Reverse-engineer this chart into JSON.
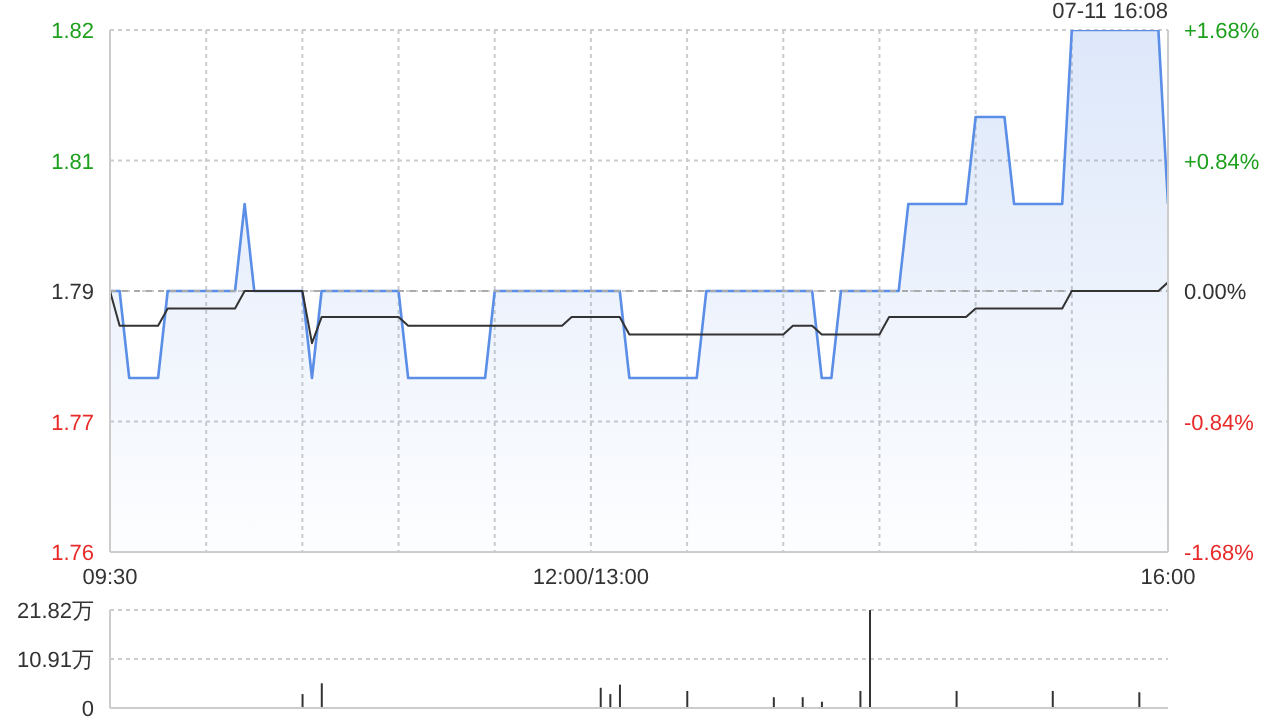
{
  "chart_data": [
    {
      "type": "area",
      "annotations": [
        "07-11 16:08"
      ],
      "categories": [
        "09:30",
        null,
        null,
        null,
        null,
        null,
        null,
        null,
        null,
        null,
        null,
        null,
        null,
        null,
        null,
        null,
        null,
        null,
        null,
        null,
        null,
        null,
        null,
        null,
        null,
        null,
        null,
        null,
        null,
        null,
        null,
        null,
        null,
        null,
        null,
        null,
        null,
        null,
        null,
        null,
        null,
        null,
        null,
        null,
        null,
        null,
        null,
        null,
        null,
        null,
        "12:00/13:00",
        null,
        null,
        null,
        null,
        null,
        null,
        null,
        null,
        null,
        null,
        null,
        null,
        null,
        null,
        null,
        null,
        null,
        null,
        null,
        null,
        null,
        null,
        null,
        null,
        null,
        null,
        null,
        null,
        null,
        null,
        null,
        null,
        null,
        null,
        null,
        null,
        null,
        null,
        null,
        null,
        null,
        null,
        null,
        null,
        null,
        null,
        null,
        null,
        null,
        null,
        null,
        null,
        null,
        null,
        null,
        null,
        null,
        null,
        null,
        "16:00"
      ],
      "ylim": [
        1.76,
        1.82
      ],
      "yticks": [
        1.76,
        {
          "value": 1.775,
          "label": "1.77"
        },
        1.79,
        {
          "value": 1.805,
          "label": "1.81"
        },
        1.82
      ],
      "y2lim": [
        -1.68,
        1.68
      ],
      "y2ticks": [
        {
          "value": -1.68,
          "label": "-1.68%"
        },
        {
          "value": -0.84,
          "label": "-0.84%"
        },
        {
          "value": 0,
          "label": "0.00%"
        },
        {
          "value": 0.84,
          "label": "+0.84%"
        },
        {
          "value": 1.68,
          "label": "+1.68%"
        }
      ],
      "grid": true,
      "legend": false,
      "marker": "none",
      "ref_lines": [
        {
          "axis": "y",
          "value": 1.79,
          "line_style": "dashed",
          "color": "#aaaaaa"
        }
      ],
      "series": [
        {
          "color": "#5b8ee6",
          "values": [
            1.79,
            1.79,
            1.78,
            1.78,
            1.78,
            1.78,
            1.79,
            1.79,
            1.79,
            1.79,
            1.79,
            1.79,
            1.79,
            1.79,
            1.8,
            1.79,
            1.79,
            1.79,
            1.79,
            1.79,
            1.79,
            1.78,
            1.79,
            1.79,
            1.79,
            1.79,
            1.79,
            1.79,
            1.79,
            1.79,
            1.79,
            1.78,
            1.78,
            1.78,
            1.78,
            1.78,
            1.78,
            1.78,
            1.78,
            1.78,
            1.79,
            1.79,
            1.79,
            1.79,
            1.79,
            1.79,
            1.79,
            1.79,
            1.79,
            1.79,
            1.79,
            1.79,
            1.79,
            1.79,
            1.78,
            1.78,
            1.78,
            1.78,
            1.78,
            1.78,
            1.78,
            1.78,
            1.79,
            1.79,
            1.79,
            1.79,
            1.79,
            1.79,
            1.79,
            1.79,
            1.79,
            1.79,
            1.79,
            1.79,
            1.78,
            1.78,
            1.79,
            1.79,
            1.79,
            1.79,
            1.79,
            1.79,
            1.79,
            1.8,
            1.8,
            1.8,
            1.8,
            1.8,
            1.8,
            1.8,
            1.81,
            1.81,
            1.81,
            1.81,
            1.8,
            1.8,
            1.8,
            1.8,
            1.8,
            1.8,
            1.82,
            1.82,
            1.82,
            1.82,
            1.82,
            1.82,
            1.82,
            1.82,
            1.82,
            1.82,
            1.8
          ]
        },
        {
          "type": "line",
          "color": "#333333",
          "values": [
            1.79,
            1.786,
            1.786,
            1.786,
            1.786,
            1.786,
            1.788,
            1.788,
            1.788,
            1.788,
            1.788,
            1.788,
            1.788,
            1.788,
            1.79,
            1.79,
            1.79,
            1.79,
            1.79,
            1.79,
            1.79,
            1.784,
            1.787,
            1.787,
            1.787,
            1.787,
            1.787,
            1.787,
            1.787,
            1.787,
            1.787,
            1.786,
            1.786,
            1.786,
            1.786,
            1.786,
            1.786,
            1.786,
            1.786,
            1.786,
            1.786,
            1.786,
            1.786,
            1.786,
            1.786,
            1.786,
            1.786,
            1.786,
            1.787,
            1.787,
            1.787,
            1.787,
            1.787,
            1.787,
            1.785,
            1.785,
            1.785,
            1.785,
            1.785,
            1.785,
            1.785,
            1.785,
            1.785,
            1.785,
            1.785,
            1.785,
            1.785,
            1.785,
            1.785,
            1.785,
            1.785,
            1.786,
            1.786,
            1.786,
            1.785,
            1.785,
            1.785,
            1.785,
            1.785,
            1.785,
            1.785,
            1.787,
            1.787,
            1.787,
            1.787,
            1.787,
            1.787,
            1.787,
            1.787,
            1.787,
            1.788,
            1.788,
            1.788,
            1.788,
            1.788,
            1.788,
            1.788,
            1.788,
            1.788,
            1.788,
            1.79,
            1.79,
            1.79,
            1.79,
            1.79,
            1.79,
            1.79,
            1.79,
            1.79,
            1.79,
            1.791
          ]
        }
      ]
    },
    {
      "type": "bar",
      "categories": [
        null,
        null,
        null,
        null,
        null,
        null,
        null,
        null,
        null,
        null,
        null,
        null,
        null,
        null,
        null,
        null,
        null,
        null,
        null,
        null,
        null,
        null,
        null,
        null,
        null,
        null,
        null,
        null,
        null,
        null,
        null,
        null,
        null,
        null,
        null,
        null,
        null,
        null,
        null,
        null,
        null,
        null,
        null,
        null,
        null,
        null,
        null,
        null,
        null,
        null,
        null,
        null,
        null,
        null,
        null,
        null,
        null,
        null,
        null,
        null,
        null,
        null,
        null,
        null,
        null,
        null,
        null,
        null,
        null,
        null,
        null,
        null,
        null,
        null,
        null,
        null,
        null,
        null,
        null,
        null,
        null,
        null,
        null,
        null,
        null,
        null,
        null,
        null,
        null,
        null,
        null,
        null,
        null,
        null,
        null,
        null,
        null,
        null,
        null,
        null,
        null,
        null,
        null,
        null,
        null,
        null,
        null,
        null,
        null,
        null,
        null
      ],
      "ylim": [
        0,
        21.82
      ],
      "yticks": [
        0,
        {
          "value": 10.91,
          "label": "10.91万"
        },
        {
          "value": 21.82,
          "label": "21.82万"
        }
      ],
      "tick_labels": "y",
      "grid": "y",
      "legend": false,
      "values": [
        0,
        0,
        0,
        0,
        0,
        0,
        0,
        0,
        0,
        0,
        0,
        0,
        0,
        0,
        0,
        0,
        0,
        0,
        0,
        0,
        3.1,
        0,
        5.5,
        0,
        0,
        0,
        0,
        0,
        0,
        0,
        0,
        0,
        0,
        0,
        0,
        0,
        0,
        0,
        0,
        0,
        0,
        0,
        0,
        0,
        0,
        0,
        0,
        0,
        0,
        0,
        0,
        4.5,
        3.1,
        5.2,
        0,
        0,
        0,
        0,
        0,
        0,
        3.8,
        0,
        0,
        0,
        0,
        0,
        0,
        0,
        0,
        2.4,
        0,
        0,
        2.4,
        0,
        1.4,
        0,
        0,
        0,
        3.8,
        21.8,
        0,
        0,
        0,
        0,
        0,
        0,
        0,
        0,
        3.8,
        0,
        0,
        0,
        0,
        0,
        0,
        0,
        0,
        0,
        3.8,
        0,
        0,
        0,
        0,
        0,
        0,
        0,
        0,
        3.5,
        0,
        0,
        0
      ],
      "color": "#333333"
    }
  ]
}
